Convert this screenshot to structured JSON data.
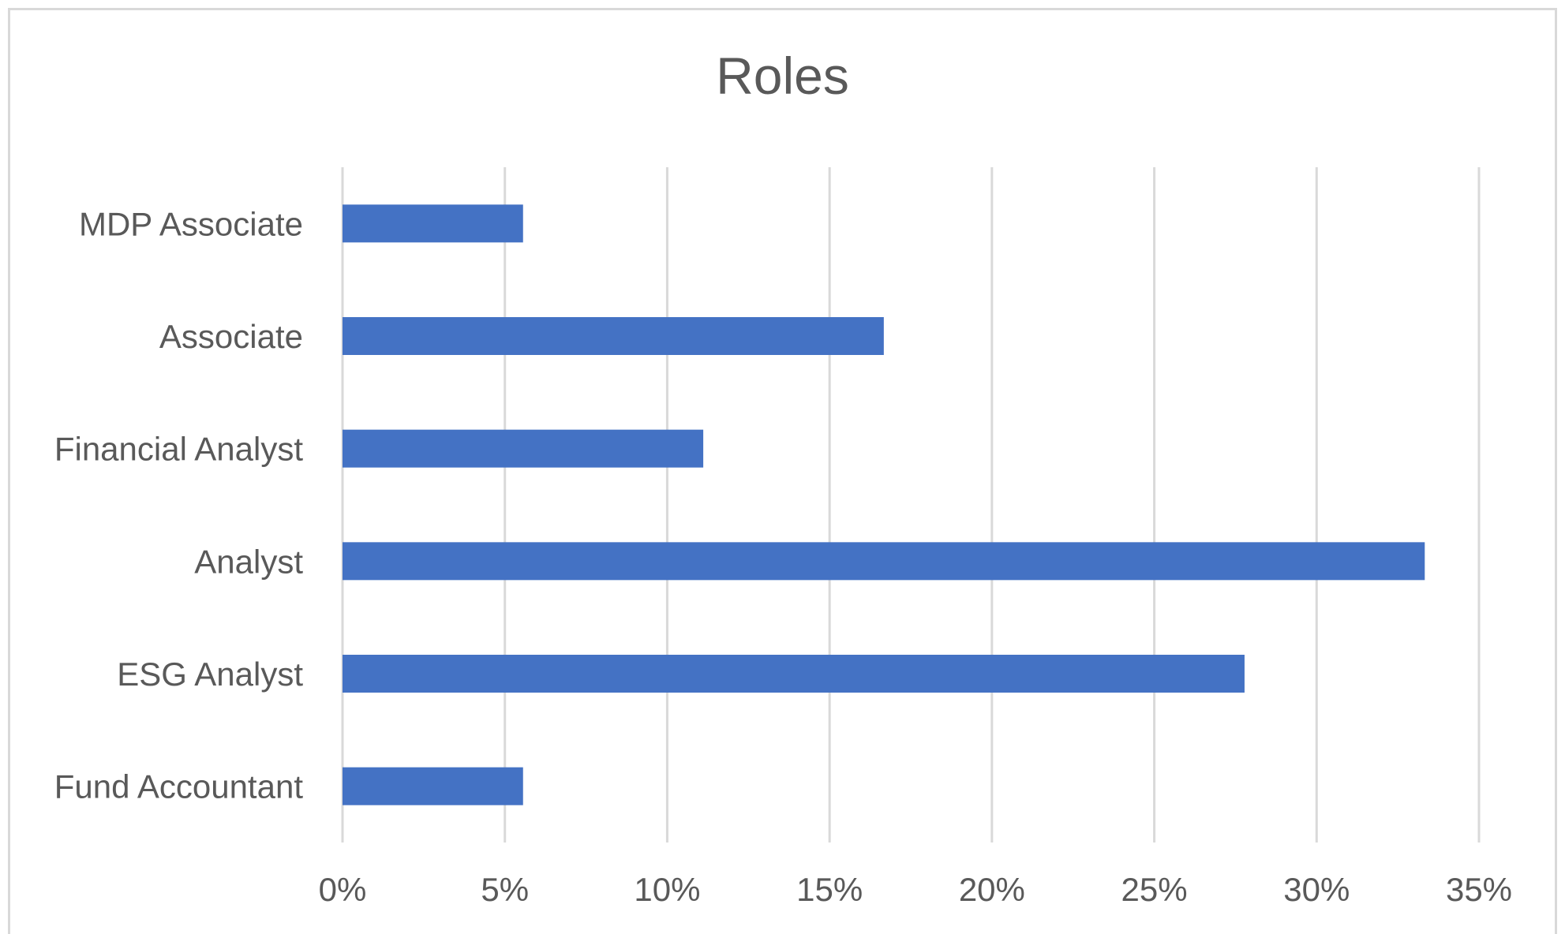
{
  "chart_data": {
    "type": "bar",
    "orientation": "horizontal",
    "title": "Roles",
    "xlabel": "",
    "ylabel": "",
    "categories": [
      "MDP Associate",
      "Associate",
      "Financial Analyst",
      "Analyst",
      "ESG Analyst",
      "Fund Accountant"
    ],
    "values": [
      5.56,
      16.67,
      11.11,
      33.33,
      27.78,
      5.56
    ],
    "value_unit": "percent",
    "xlim": [
      0,
      35
    ],
    "xticks": [
      0,
      5,
      10,
      15,
      20,
      25,
      30,
      35
    ],
    "tick_labels": [
      "0%",
      "5%",
      "10%",
      "15%",
      "20%",
      "25%",
      "30%",
      "35%"
    ],
    "grid": "vertical",
    "legend": "none",
    "bar_color": "#4472C4",
    "grid_color": "#d9d9d9"
  }
}
